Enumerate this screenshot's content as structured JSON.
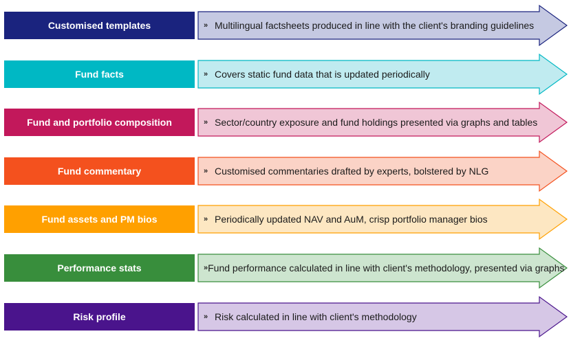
{
  "rows": [
    {
      "label": "Customised templates",
      "description": "Multilingual factsheets produced in line with the client's branding guidelines",
      "color": "#1a237e",
      "light": "#c5c9e2",
      "stroke": "#1a237e"
    },
    {
      "label": "Fund facts",
      "description": "Covers static fund data that is updated periodically",
      "color": "#00b8c4",
      "light": "#c0ebf0",
      "stroke": "#00b8c4"
    },
    {
      "label": "Fund and portfolio composition",
      "description": "Sector/country exposure and fund holdings presented via graphs and tables",
      "color": "#c2185b",
      "light": "#f0c6d6",
      "stroke": "#c2185b"
    },
    {
      "label": "Fund commentary",
      "description": "Customised commentaries drafted by experts, bolstered by NLG",
      "color": "#f4511e",
      "light": "#fbd3c6",
      "stroke": "#f4511e"
    },
    {
      "label": "Fund assets and PM bios",
      "description": "Periodically updated NAV and AuM, crisp portfolio manager bios",
      "color": "#ffa000",
      "light": "#fde7c2",
      "stroke": "#ffa000"
    },
    {
      "label": "Performance stats",
      "description": "Fund performance calculated in line with client's methodology, presented via graphs",
      "color": "#388e3c",
      "light": "#cde5cf",
      "stroke": "#388e3c"
    },
    {
      "label": "Risk profile",
      "description": "Risk calculated in line with client's methodology",
      "color": "#4a148c",
      "light": "#d6c7e6",
      "stroke": "#4a148c"
    }
  ],
  "bullet": "»"
}
